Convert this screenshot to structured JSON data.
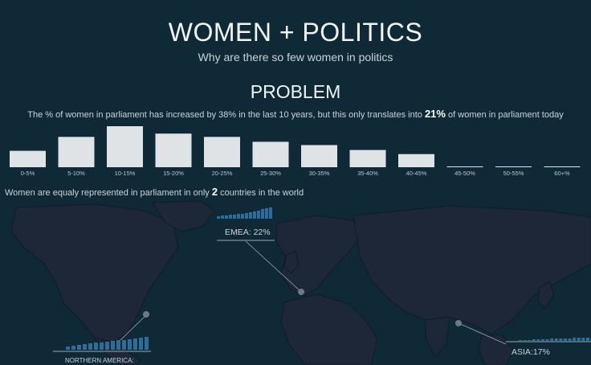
{
  "header": {
    "title": "WOMEN + POLITICS",
    "subtitle": "Why are there so few women in politics"
  },
  "problem": {
    "heading": "PROBLEM",
    "text_before": "The % of women in parliament has increased by 38% in the last 10 years, but this only translates into ",
    "highlight": "21%",
    "text_after": " of women in parliament today"
  },
  "equality": {
    "text_before": "Women are equaly represented in parliament in only ",
    "highlight": "2",
    "text_after": " countries in the world"
  },
  "chart_data": {
    "type": "bar",
    "categories": [
      "0-5%",
      "5-10%",
      "10-15%",
      "15-20%",
      "20-25%",
      "25-30%",
      "30-35%",
      "35-40%",
      "40-45%",
      "45-50%",
      "50-55%",
      "60+%"
    ],
    "values": [
      20,
      37,
      50,
      41,
      37,
      31,
      27,
      21,
      16,
      1,
      1,
      1
    ],
    "title": "",
    "xlabel": "",
    "ylabel": "",
    "ylim": [
      0,
      50
    ],
    "grid": false,
    "bar_color": "#dfe3e6"
  },
  "map": {
    "regions": [
      {
        "name": "EMEA",
        "label": "EMEA: 22%"
      },
      {
        "name": "ASIA",
        "label": "ASIA:17%"
      },
      {
        "name": "NORTHERN AMERICA",
        "label": "NORTHERN AMERICA:"
      }
    ],
    "colors": {
      "land": "#1d2738",
      "ocean": "#0f2a36",
      "accent": "#2e6d99"
    }
  }
}
